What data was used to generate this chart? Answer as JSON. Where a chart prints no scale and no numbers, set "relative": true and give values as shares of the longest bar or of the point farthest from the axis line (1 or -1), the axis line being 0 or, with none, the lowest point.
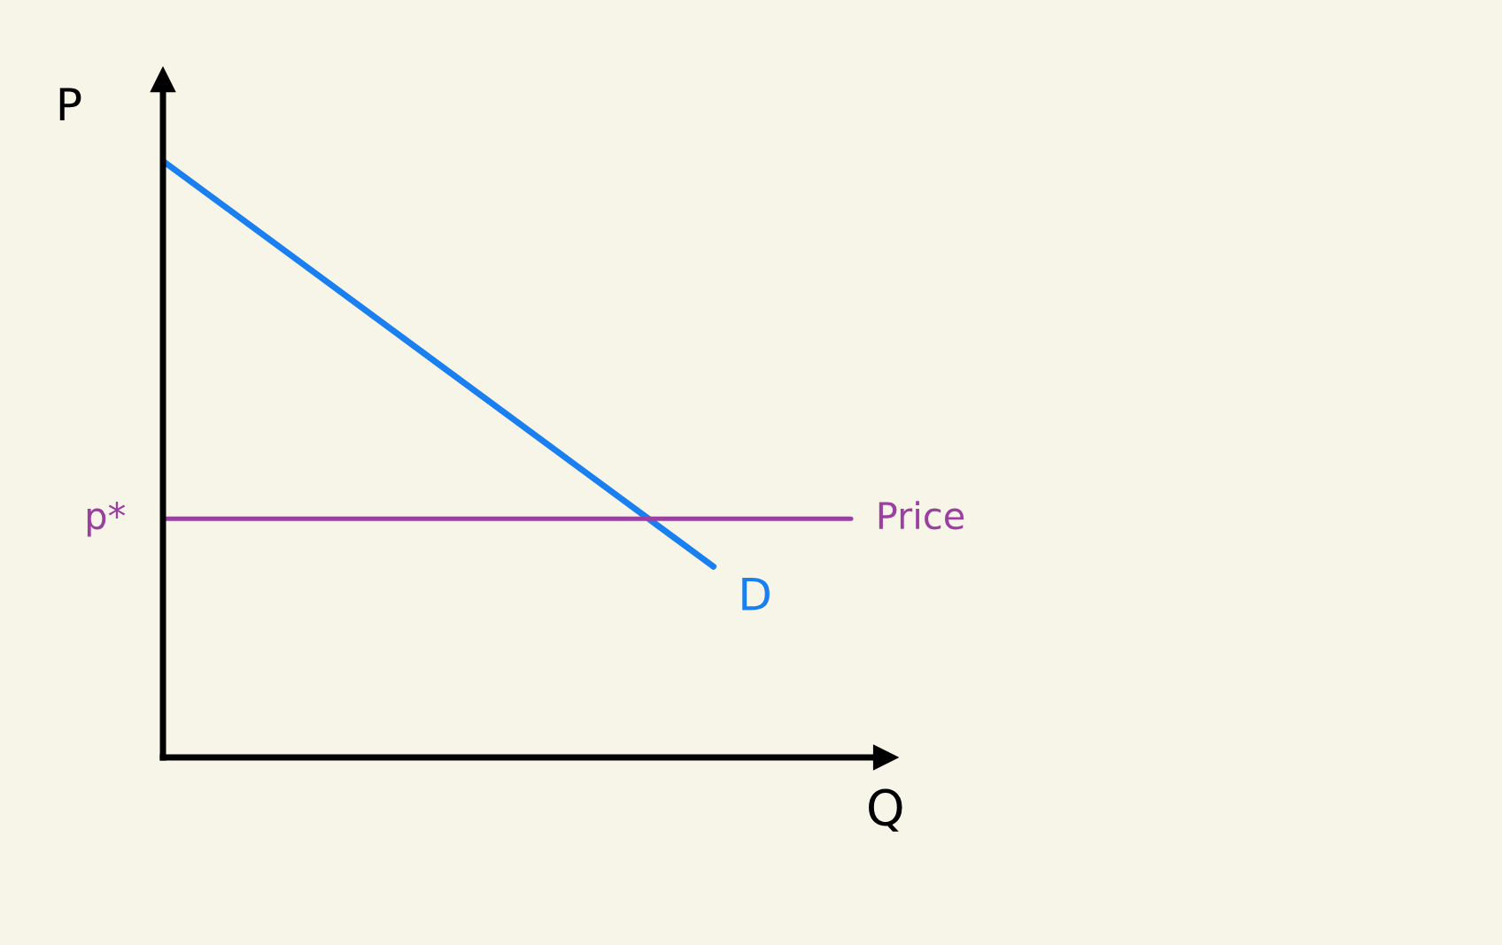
{
  "chart_data": {
    "type": "line",
    "relative": true,
    "xlabel": "Q",
    "ylabel": "P",
    "categories": [
      null,
      null,
      null,
      null,
      null,
      null
    ],
    "series": [
      {
        "name": "D",
        "color": "#1a7ff0",
        "values": [
          1,
          0.83,
          0.66,
          0.49,
          0.32,
          null
        ]
      },
      {
        "name": "Price",
        "color": "#9b3fa0",
        "values": [
          0.4,
          0.4,
          0.4,
          0.4,
          0.4,
          0.4
        ]
      }
    ],
    "annotations": [
      "p*"
    ],
    "legend": false,
    "marker": "none",
    "line_style": "solid"
  }
}
